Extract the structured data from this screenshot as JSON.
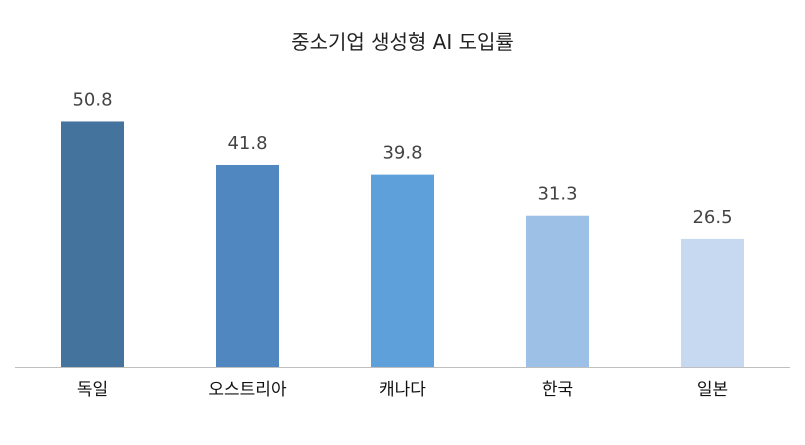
{
  "chart_data": {
    "type": "bar",
    "title": "중소기업 생성형 AI 도입률",
    "categories": [
      "독일",
      "오스트리아",
      "캐나다",
      "한국",
      "일본"
    ],
    "values": [
      50.8,
      41.8,
      39.8,
      31.3,
      26.5
    ],
    "value_labels": [
      "50.8",
      "41.8",
      "39.8",
      "31.3",
      "26.5"
    ],
    "colors": [
      "#44739e",
      "#5087c0",
      "#5ea0da",
      "#9dc0e7",
      "#c6d9f1"
    ],
    "xlabel": "",
    "ylabel": "",
    "ylim": [
      0,
      60
    ],
    "grid": false,
    "legend": "none"
  }
}
